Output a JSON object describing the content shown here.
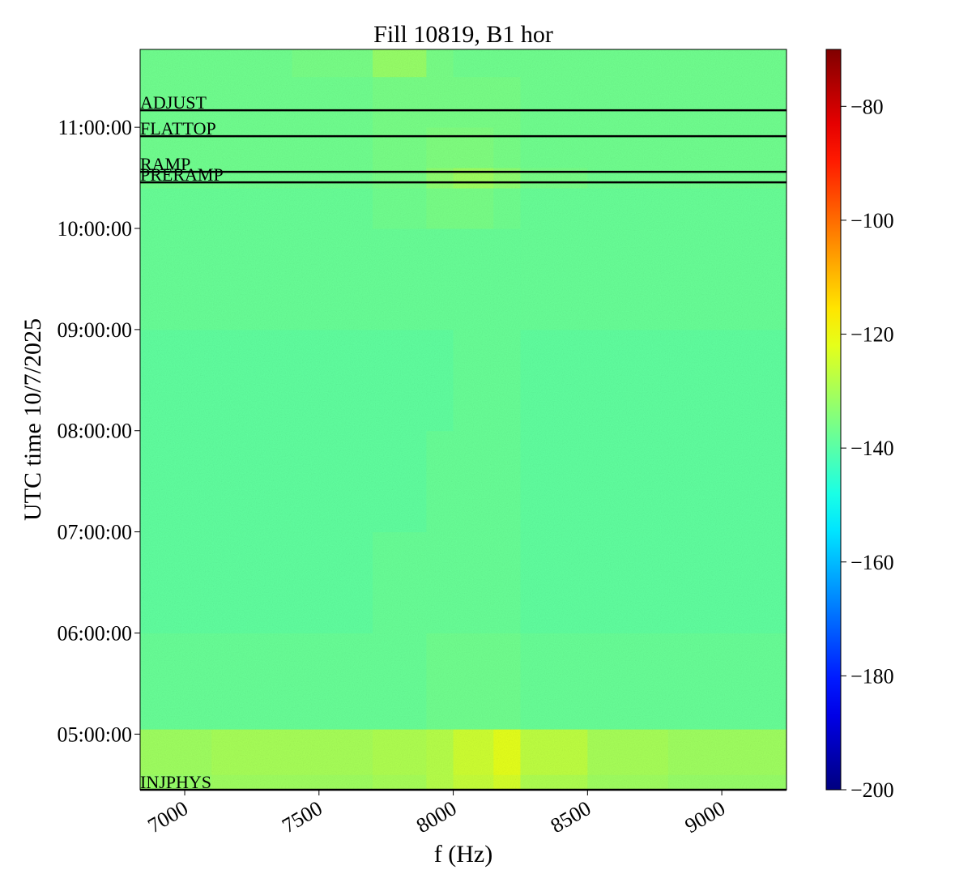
{
  "chart_data": {
    "type": "heatmap",
    "title": "Fill 10819, B1 hor",
    "xlabel": "f (Hz)",
    "ylabel": "UTC time 10/7/2025",
    "colormap": "jet",
    "clim": [
      -200,
      -70
    ],
    "cticks": [
      -80,
      -100,
      -120,
      -140,
      -160,
      -180,
      -200
    ],
    "xlim": [
      6834,
      9241
    ],
    "xticks": [
      7000,
      7500,
      8000,
      8500,
      9000
    ],
    "ylim": [
      4.45,
      11.77
    ],
    "yticks": [
      {
        "value": 5,
        "label": "05:00:00"
      },
      {
        "value": 6,
        "label": "06:00:00"
      },
      {
        "value": 7,
        "label": "07:00:00"
      },
      {
        "value": 8,
        "label": "08:00:00"
      },
      {
        "value": 9,
        "label": "09:00:00"
      },
      {
        "value": 10,
        "label": "10:00:00"
      },
      {
        "value": 11,
        "label": "11:00:00"
      }
    ],
    "x_edges": [
      6834,
      7100,
      7400,
      7700,
      7900,
      8000,
      8150,
      8250,
      8500,
      8800,
      9241
    ],
    "y_edges": [
      4.45,
      4.6,
      5.05,
      6.0,
      7.0,
      8.0,
      9.0,
      10.0,
      10.4,
      10.6,
      11.0,
      11.5,
      11.77
    ],
    "z": [
      [
        -132,
        -131,
        -131,
        -130,
        -128,
        -126,
        -124,
        -129,
        -131,
        -132
      ],
      [
        -131,
        -130,
        -130,
        -129,
        -128,
        -125,
        -122,
        -127,
        -130,
        -131
      ],
      [
        -138,
        -138,
        -138,
        -138,
        -137,
        -137,
        -137,
        -138,
        -138,
        -138
      ],
      [
        -139,
        -139,
        -139,
        -138,
        -138,
        -138,
        -138,
        -139,
        -139,
        -139
      ],
      [
        -139,
        -139,
        -139,
        -139,
        -138,
        -138,
        -138,
        -139,
        -139,
        -139
      ],
      [
        -139,
        -139,
        -139,
        -139,
        -139,
        -138,
        -138,
        -139,
        -139,
        -139
      ],
      [
        -138,
        -138,
        -138,
        -138,
        -138,
        -138,
        -138,
        -138,
        -138,
        -138
      ],
      [
        -138,
        -138,
        -138,
        -137,
        -136,
        -136,
        -137,
        -138,
        -138,
        -138
      ],
      [
        -137,
        -137,
        -137,
        -136,
        -133,
        -131,
        -133,
        -136,
        -137,
        -137
      ],
      [
        -137,
        -137,
        -137,
        -136,
        -135,
        -135,
        -136,
        -137,
        -137,
        -137
      ],
      [
        -137,
        -137,
        -137,
        -136,
        -136,
        -136,
        -136,
        -137,
        -137,
        -137
      ],
      [
        -137,
        -137,
        -136,
        -132,
        -136,
        -137,
        -137,
        -137,
        -137,
        -137
      ]
    ],
    "annotations": [
      {
        "label": "ADJUST",
        "y": 11.168
      },
      {
        "label": "FLATTOP",
        "y": 10.912
      },
      {
        "label": "RAMP",
        "y": 10.56
      },
      {
        "label": "PRERAMP",
        "y": 10.456
      },
      {
        "label": "INJPHYS",
        "y": 4.45
      }
    ],
    "annotation_color": "#000000"
  }
}
